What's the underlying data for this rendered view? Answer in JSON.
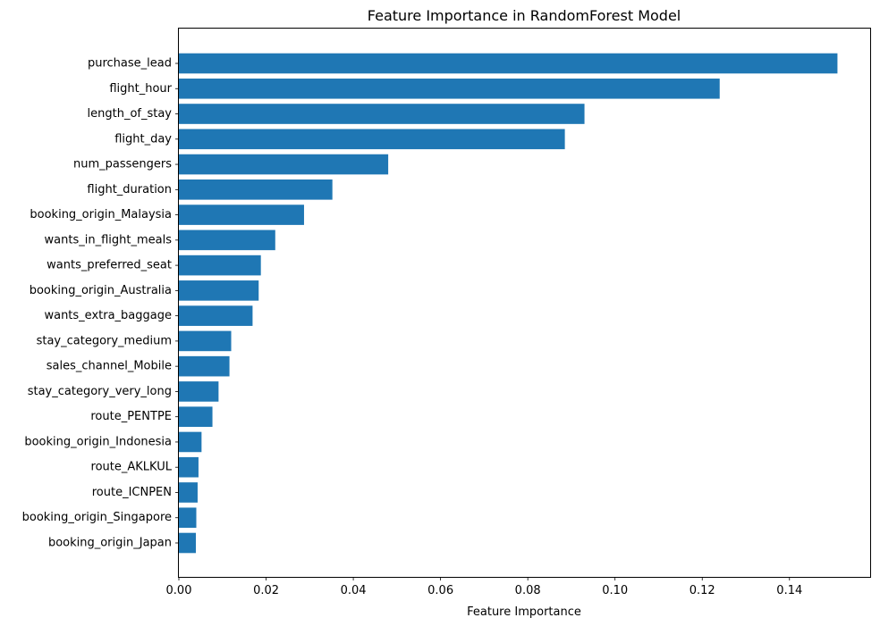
{
  "chart_data": {
    "type": "bar",
    "orientation": "horizontal",
    "title": "Feature Importance in RandomForest Model",
    "xlabel": "Feature Importance",
    "ylabel": "",
    "xlim": [
      0,
      0.1585
    ],
    "xticks": [
      "0.00",
      "0.02",
      "0.04",
      "0.06",
      "0.08",
      "0.10",
      "0.12",
      "0.14"
    ],
    "grid": false,
    "bar_color": "#1f77b4",
    "categories": [
      "purchase_lead",
      "flight_hour",
      "length_of_stay",
      "flight_day",
      "num_passengers",
      "flight_duration",
      "booking_origin_Malaysia",
      "wants_in_flight_meals",
      "wants_preferred_seat",
      "booking_origin_Australia",
      "wants_extra_baggage",
      "stay_category_medium",
      "sales_channel_Mobile",
      "stay_category_very_long",
      "route_PENTPE",
      "booking_origin_Indonesia",
      "route_AKLKUL",
      "route_ICNPEN",
      "booking_origin_Singapore",
      "booking_origin_Japan"
    ],
    "values": [
      0.151,
      0.124,
      0.093,
      0.0885,
      0.048,
      0.0352,
      0.0287,
      0.0221,
      0.0188,
      0.0183,
      0.0169,
      0.012,
      0.0116,
      0.0091,
      0.0077,
      0.0052,
      0.0045,
      0.0043,
      0.004,
      0.0039
    ]
  }
}
